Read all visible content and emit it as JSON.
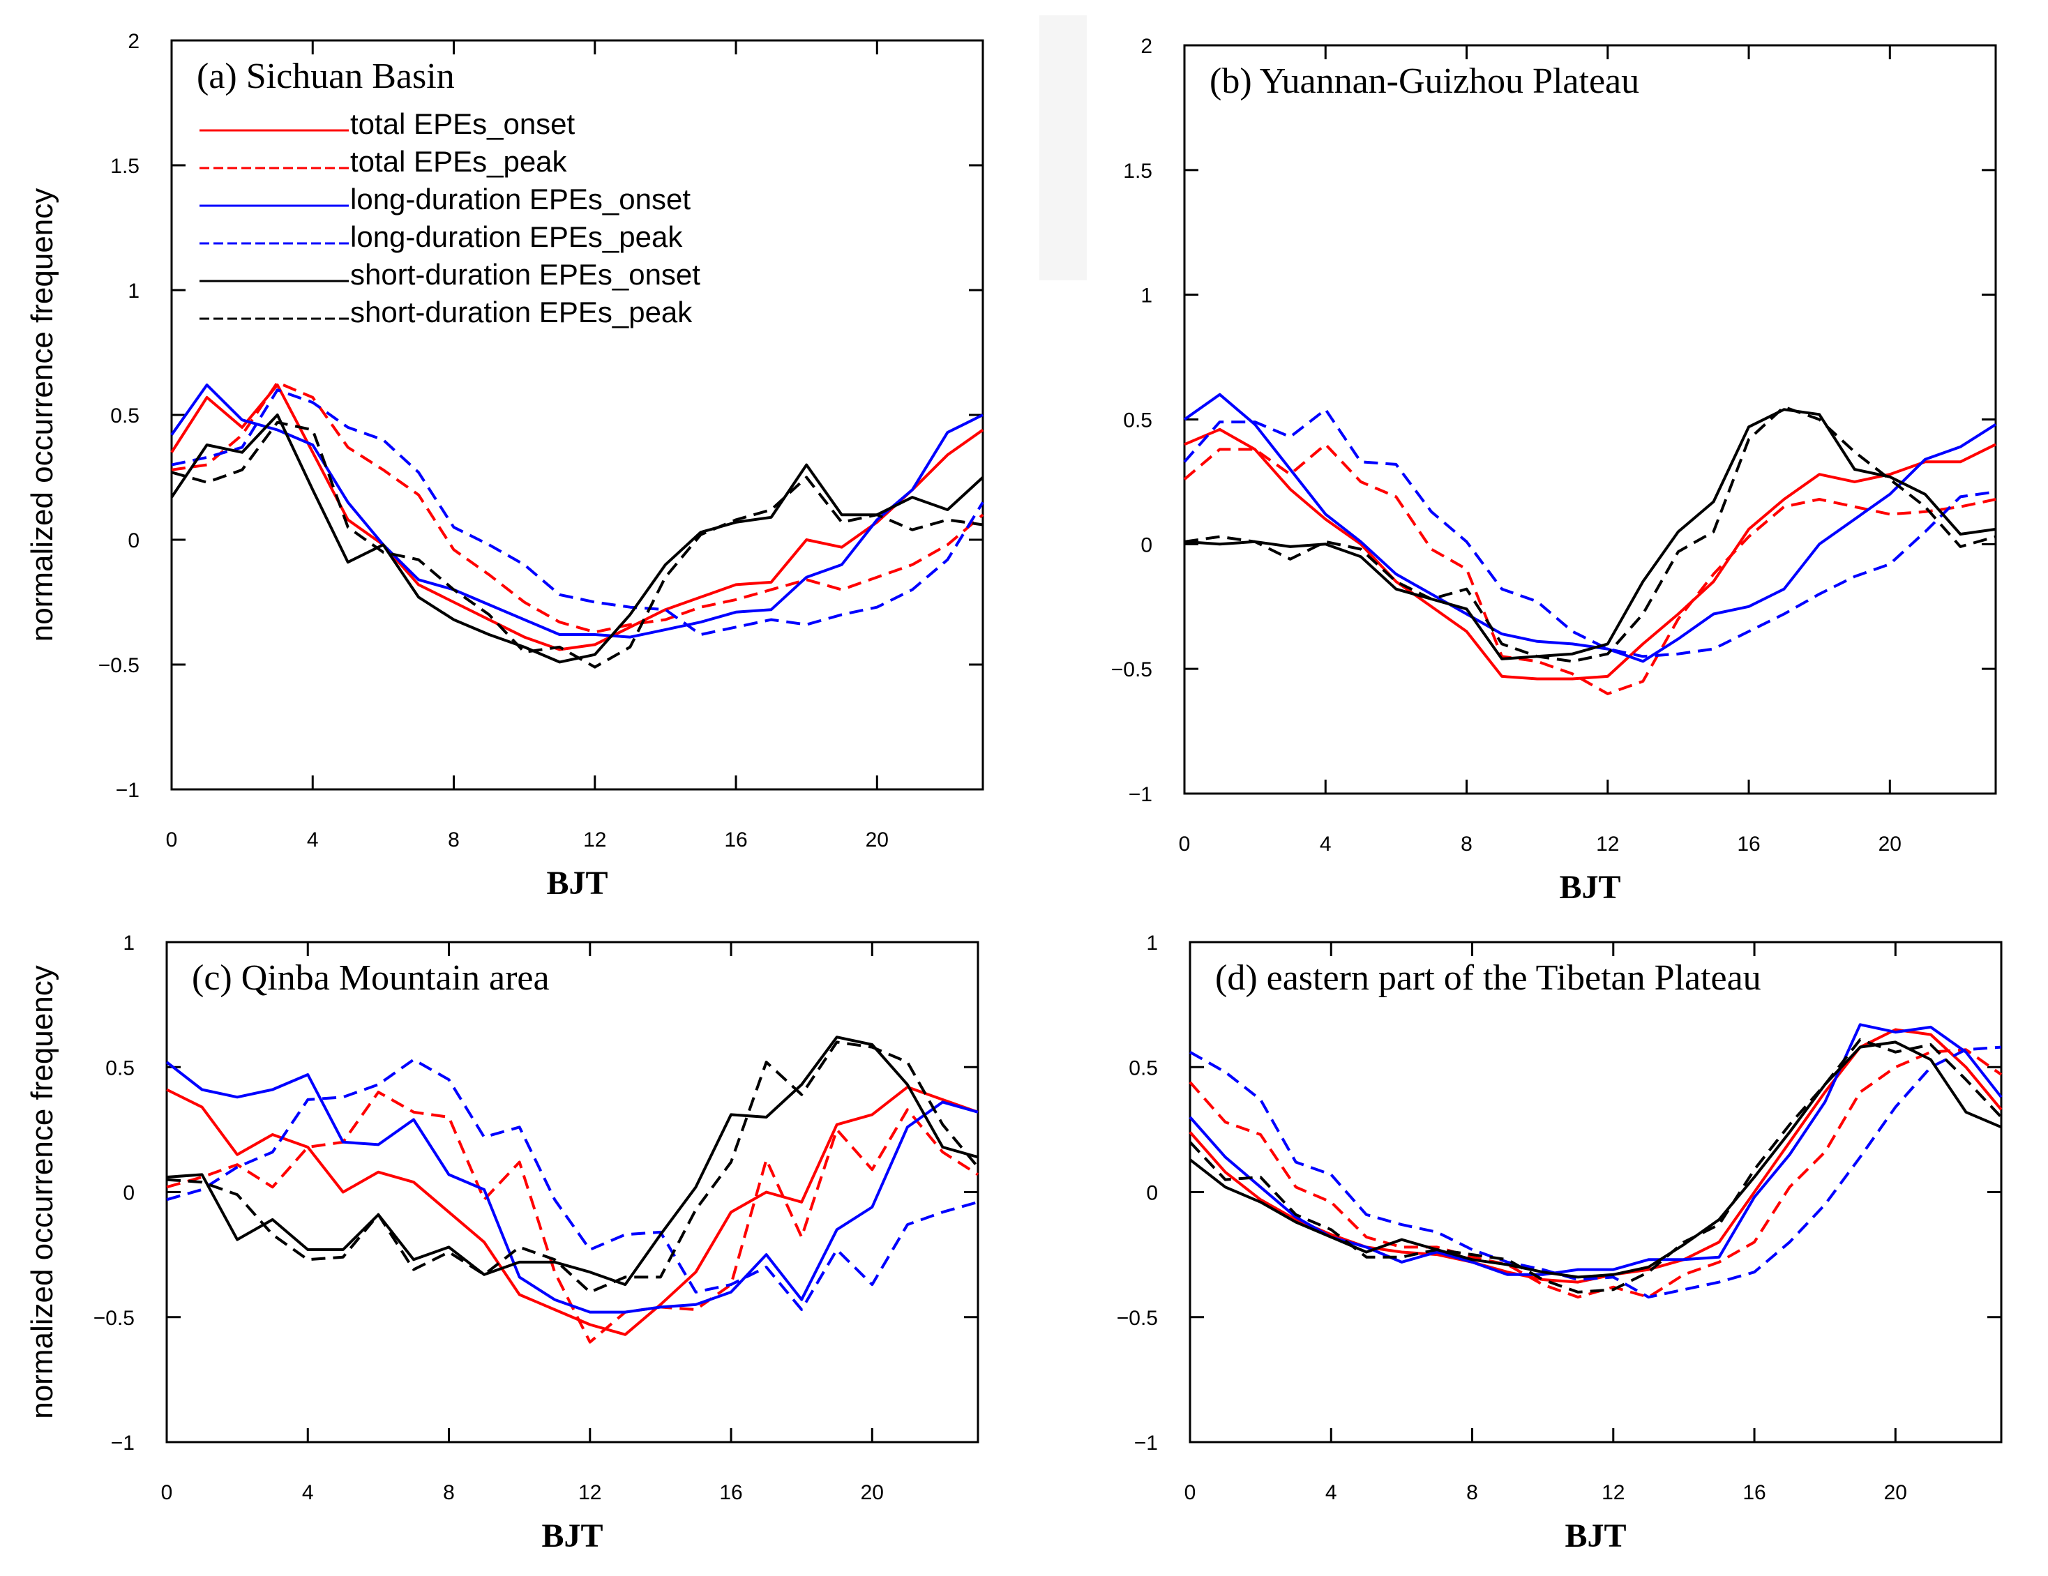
{
  "figure": {
    "y_axis_label": "normalized occurrence frequency",
    "x_axis_label": "BJT",
    "legend": [
      {
        "label": "total EPEs_onset",
        "color": "#ff0000",
        "dashed": false
      },
      {
        "label": "total EPEs_peak",
        "color": "#ff0000",
        "dashed": true
      },
      {
        "label": "long-duration EPEs_onset",
        "color": "#0000ff",
        "dashed": false
      },
      {
        "label": "long-duration EPEs_peak",
        "color": "#0000ff",
        "dashed": true
      },
      {
        "label": "short-duration EPEs_onset",
        "color": "#000000",
        "dashed": false
      },
      {
        "label": "short-duration EPEs_peak",
        "color": "#000000",
        "dashed": true
      }
    ]
  },
  "chart_data": [
    {
      "type": "line",
      "title": "(a) Sichuan Basin",
      "xlabel": "BJT",
      "ylabel": "normalized occurrence frequency",
      "xlim": [
        0,
        23
      ],
      "ylim": [
        -1,
        2
      ],
      "xticks": [
        0,
        4,
        8,
        12,
        16,
        20
      ],
      "yticks": [
        -1,
        -0.5,
        0,
        0.5,
        1,
        1.5,
        2
      ],
      "ytick_labels": [
        "−1",
        "−0.5",
        "0",
        "0.5",
        "1",
        "1.5",
        "2"
      ],
      "x": [
        0,
        1,
        2,
        3,
        4,
        5,
        6,
        7,
        8,
        9,
        10,
        11,
        12,
        13,
        14,
        15,
        16,
        17,
        18,
        19,
        20,
        21,
        22,
        23
      ],
      "series": [
        {
          "name": "total EPEs_onset",
          "color": "#ff0000",
          "dashed": false,
          "values": [
            0.35,
            0.57,
            0.45,
            0.62,
            0.35,
            0.08,
            -0.02,
            -0.18,
            -0.25,
            -0.32,
            -0.39,
            -0.44,
            -0.42,
            -0.35,
            -0.28,
            -0.23,
            -0.18,
            -0.17,
            0.0,
            -0.03,
            0.07,
            0.2,
            0.34,
            0.44
          ]
        },
        {
          "name": "total EPEs_peak",
          "color": "#ff0000",
          "dashed": true,
          "values": [
            0.28,
            0.3,
            0.42,
            0.63,
            0.57,
            0.37,
            0.28,
            0.18,
            -0.04,
            -0.14,
            -0.25,
            -0.33,
            -0.37,
            -0.34,
            -0.32,
            -0.27,
            -0.24,
            -0.2,
            -0.16,
            -0.2,
            -0.15,
            -0.1,
            -0.02,
            0.1
          ]
        },
        {
          "name": "long-duration EPEs_onset",
          "color": "#0000ff",
          "dashed": false,
          "values": [
            0.42,
            0.62,
            0.48,
            0.44,
            0.38,
            0.15,
            -0.02,
            -0.16,
            -0.2,
            -0.26,
            -0.32,
            -0.38,
            -0.38,
            -0.39,
            -0.36,
            -0.33,
            -0.29,
            -0.28,
            -0.15,
            -0.1,
            0.08,
            0.2,
            0.43,
            0.5
          ]
        },
        {
          "name": "long-duration EPEs_peak",
          "color": "#0000ff",
          "dashed": true,
          "values": [
            0.3,
            0.33,
            0.37,
            0.6,
            0.55,
            0.45,
            0.4,
            0.27,
            0.05,
            -0.02,
            -0.1,
            -0.22,
            -0.25,
            -0.27,
            -0.28,
            -0.38,
            -0.35,
            -0.32,
            -0.34,
            -0.3,
            -0.27,
            -0.2,
            -0.08,
            0.15
          ]
        },
        {
          "name": "short-duration EPEs_onset",
          "color": "#000000",
          "dashed": false,
          "values": [
            0.17,
            0.38,
            0.35,
            0.5,
            0.2,
            -0.09,
            -0.02,
            -0.23,
            -0.32,
            -0.38,
            -0.43,
            -0.49,
            -0.46,
            -0.3,
            -0.1,
            0.03,
            0.07,
            0.09,
            0.3,
            0.1,
            0.1,
            0.17,
            0.12,
            0.25
          ]
        },
        {
          "name": "short-duration EPEs_peak",
          "color": "#000000",
          "dashed": true,
          "values": [
            0.27,
            0.23,
            0.28,
            0.47,
            0.44,
            0.05,
            -0.05,
            -0.08,
            -0.2,
            -0.3,
            -0.45,
            -0.43,
            -0.51,
            -0.43,
            -0.15,
            0.02,
            0.08,
            0.12,
            0.25,
            0.07,
            0.1,
            0.04,
            0.08,
            0.06
          ]
        }
      ]
    },
    {
      "type": "line",
      "title": "(b) Yuannan-Guizhou Plateau",
      "xlabel": "BJT",
      "ylabel": "",
      "xlim": [
        0,
        23
      ],
      "ylim": [
        -1,
        2
      ],
      "xticks": [
        0,
        4,
        8,
        12,
        16,
        20
      ],
      "yticks": [
        -1,
        -0.5,
        0,
        0.5,
        1,
        1.5,
        2
      ],
      "ytick_labels": [
        "−1",
        "−0.5",
        "0",
        "0.5",
        "1",
        "1.5",
        "2"
      ],
      "x": [
        0,
        1,
        2,
        3,
        4,
        5,
        6,
        7,
        8,
        9,
        10,
        11,
        12,
        13,
        14,
        15,
        16,
        17,
        18,
        19,
        20,
        21,
        22,
        23
      ],
      "series": [
        {
          "name": "total EPEs_onset",
          "color": "#ff0000",
          "dashed": false,
          "values": [
            0.4,
            0.46,
            0.38,
            0.22,
            0.1,
            0.0,
            -0.15,
            -0.25,
            -0.35,
            -0.53,
            -0.54,
            -0.54,
            -0.53,
            -0.4,
            -0.28,
            -0.15,
            0.06,
            0.18,
            0.28,
            0.25,
            0.28,
            0.33,
            0.33,
            0.4
          ]
        },
        {
          "name": "total EPEs_peak",
          "color": "#ff0000",
          "dashed": true,
          "values": [
            0.26,
            0.38,
            0.38,
            0.28,
            0.4,
            0.25,
            0.19,
            -0.02,
            -0.1,
            -0.45,
            -0.47,
            -0.52,
            -0.6,
            -0.55,
            -0.3,
            -0.12,
            0.03,
            0.15,
            0.18,
            0.15,
            0.12,
            0.13,
            0.15,
            0.18
          ]
        },
        {
          "name": "long-duration EPEs_onset",
          "color": "#0000ff",
          "dashed": false,
          "values": [
            0.5,
            0.6,
            0.48,
            0.3,
            0.12,
            0.01,
            -0.12,
            -0.2,
            -0.28,
            -0.36,
            -0.39,
            -0.4,
            -0.42,
            -0.47,
            -0.38,
            -0.28,
            -0.25,
            -0.18,
            0.0,
            0.1,
            0.2,
            0.34,
            0.39,
            0.48
          ]
        },
        {
          "name": "long-duration EPEs_peak",
          "color": "#0000ff",
          "dashed": true,
          "values": [
            0.33,
            0.49,
            0.49,
            0.43,
            0.54,
            0.33,
            0.32,
            0.13,
            0.01,
            -0.18,
            -0.23,
            -0.35,
            -0.42,
            -0.45,
            -0.44,
            -0.42,
            -0.35,
            -0.28,
            -0.2,
            -0.13,
            -0.08,
            0.05,
            0.19,
            0.21
          ]
        },
        {
          "name": "short-duration EPEs_onset",
          "color": "#000000",
          "dashed": false,
          "values": [
            0.01,
            0.0,
            0.01,
            -0.01,
            0.0,
            -0.05,
            -0.18,
            -0.22,
            -0.26,
            -0.46,
            -0.45,
            -0.44,
            -0.4,
            -0.15,
            0.05,
            0.17,
            0.47,
            0.54,
            0.52,
            0.3,
            0.27,
            0.2,
            0.04,
            0.06
          ]
        },
        {
          "name": "short-duration EPEs_peak",
          "color": "#000000",
          "dashed": true,
          "values": [
            0.01,
            0.03,
            0.01,
            -0.06,
            0.01,
            -0.02,
            -0.15,
            -0.22,
            -0.18,
            -0.4,
            -0.45,
            -0.47,
            -0.44,
            -0.28,
            -0.03,
            0.05,
            0.42,
            0.55,
            0.5,
            0.37,
            0.26,
            0.15,
            -0.01,
            0.03
          ]
        }
      ]
    },
    {
      "type": "line",
      "title": "(c) Qinba Mountain area",
      "xlabel": "BJT",
      "ylabel": "normalized occurrence frequency",
      "xlim": [
        0,
        23
      ],
      "ylim": [
        -1,
        1
      ],
      "xticks": [
        0,
        4,
        8,
        12,
        16,
        20
      ],
      "yticks": [
        -1,
        -0.5,
        0,
        0.5,
        1
      ],
      "ytick_labels": [
        "−1",
        "−0.5",
        "0",
        "0.5",
        "1"
      ],
      "x": [
        0,
        1,
        2,
        3,
        4,
        5,
        6,
        7,
        8,
        9,
        10,
        11,
        12,
        13,
        14,
        15,
        16,
        17,
        18,
        19,
        20,
        21,
        22,
        23
      ],
      "series": [
        {
          "name": "total EPEs_onset",
          "color": "#ff0000",
          "dashed": false,
          "values": [
            0.41,
            0.34,
            0.15,
            0.23,
            0.18,
            0.0,
            0.08,
            0.04,
            -0.08,
            -0.2,
            -0.41,
            -0.47,
            -0.53,
            -0.57,
            -0.45,
            -0.32,
            -0.08,
            0.0,
            -0.04,
            0.27,
            0.31,
            0.42,
            0.37,
            0.32
          ]
        },
        {
          "name": "total EPEs_peak",
          "color": "#ff0000",
          "dashed": true,
          "values": [
            0.02,
            0.06,
            0.11,
            0.02,
            0.18,
            0.2,
            0.4,
            0.32,
            0.3,
            -0.03,
            0.12,
            -0.32,
            -0.6,
            -0.48,
            -0.46,
            -0.47,
            -0.37,
            0.13,
            -0.18,
            0.25,
            0.09,
            0.33,
            0.16,
            0.07
          ]
        },
        {
          "name": "long-duration EPEs_onset",
          "color": "#0000ff",
          "dashed": false,
          "values": [
            0.52,
            0.41,
            0.38,
            0.41,
            0.47,
            0.2,
            0.19,
            0.29,
            0.07,
            0.01,
            -0.34,
            -0.43,
            -0.48,
            -0.48,
            -0.46,
            -0.45,
            -0.4,
            -0.25,
            -0.43,
            -0.15,
            -0.06,
            0.26,
            0.36,
            0.32
          ]
        },
        {
          "name": "long-duration EPEs_peak",
          "color": "#0000ff",
          "dashed": true,
          "values": [
            -0.03,
            0.01,
            0.1,
            0.16,
            0.37,
            0.38,
            0.43,
            0.53,
            0.45,
            0.22,
            0.26,
            -0.03,
            -0.23,
            -0.17,
            -0.16,
            -0.4,
            -0.37,
            -0.3,
            -0.47,
            -0.23,
            -0.37,
            -0.13,
            -0.08,
            -0.04
          ]
        },
        {
          "name": "short-duration EPEs_onset",
          "color": "#000000",
          "dashed": false,
          "values": [
            0.06,
            0.07,
            -0.19,
            -0.11,
            -0.23,
            -0.23,
            -0.09,
            -0.27,
            -0.22,
            -0.33,
            -0.28,
            -0.28,
            -0.32,
            -0.37,
            -0.17,
            0.02,
            0.31,
            0.3,
            0.43,
            0.62,
            0.59,
            0.43,
            0.18,
            0.14
          ]
        },
        {
          "name": "short-duration EPEs_peak",
          "color": "#000000",
          "dashed": true,
          "values": [
            0.05,
            0.04,
            -0.01,
            -0.17,
            -0.27,
            -0.26,
            -0.09,
            -0.31,
            -0.24,
            -0.33,
            -0.22,
            -0.27,
            -0.4,
            -0.34,
            -0.34,
            -0.07,
            0.12,
            0.52,
            0.39,
            0.6,
            0.58,
            0.52,
            0.27,
            0.1
          ]
        }
      ]
    },
    {
      "type": "line",
      "title": "(d) eastern part of the Tibetan Plateau",
      "xlabel": "BJT",
      "ylabel": "",
      "xlim": [
        0,
        23
      ],
      "ylim": [
        -1,
        1
      ],
      "xticks": [
        0,
        4,
        8,
        12,
        16,
        20
      ],
      "yticks": [
        -1,
        -0.5,
        0,
        0.5,
        1
      ],
      "ytick_labels": [
        "−1",
        "−0.5",
        "0",
        "0.5",
        "1"
      ],
      "x": [
        0,
        1,
        2,
        3,
        4,
        5,
        6,
        7,
        8,
        9,
        10,
        11,
        12,
        13,
        14,
        15,
        16,
        17,
        18,
        19,
        20,
        21,
        22,
        23
      ],
      "series": [
        {
          "name": "total EPEs_onset",
          "color": "#ff0000",
          "dashed": false,
          "values": [
            0.24,
            0.08,
            -0.03,
            -0.11,
            -0.17,
            -0.22,
            -0.24,
            -0.25,
            -0.28,
            -0.32,
            -0.35,
            -0.36,
            -0.33,
            -0.31,
            -0.27,
            -0.2,
            0.0,
            0.2,
            0.4,
            0.58,
            0.65,
            0.63,
            0.5,
            0.33
          ]
        },
        {
          "name": "total EPEs_peak",
          "color": "#ff0000",
          "dashed": true,
          "values": [
            0.44,
            0.28,
            0.23,
            0.02,
            -0.04,
            -0.18,
            -0.22,
            -0.22,
            -0.26,
            -0.29,
            -0.37,
            -0.42,
            -0.38,
            -0.42,
            -0.33,
            -0.28,
            -0.2,
            0.02,
            0.16,
            0.4,
            0.5,
            0.56,
            0.57,
            0.47
          ]
        },
        {
          "name": "long-duration EPEs_onset",
          "color": "#0000ff",
          "dashed": false,
          "values": [
            0.3,
            0.14,
            0.02,
            -0.1,
            -0.18,
            -0.22,
            -0.28,
            -0.24,
            -0.28,
            -0.33,
            -0.33,
            -0.31,
            -0.31,
            -0.27,
            -0.27,
            -0.26,
            -0.02,
            0.15,
            0.36,
            0.67,
            0.64,
            0.66,
            0.56,
            0.38
          ]
        },
        {
          "name": "long-duration EPEs_peak",
          "color": "#0000ff",
          "dashed": true,
          "values": [
            0.56,
            0.48,
            0.37,
            0.12,
            0.07,
            -0.09,
            -0.13,
            -0.16,
            -0.23,
            -0.28,
            -0.31,
            -0.35,
            -0.34,
            -0.42,
            -0.39,
            -0.36,
            -0.32,
            -0.2,
            -0.05,
            0.14,
            0.34,
            0.5,
            0.57,
            0.58
          ]
        },
        {
          "name": "short-duration EPEs_onset",
          "color": "#000000",
          "dashed": false,
          "values": [
            0.13,
            0.02,
            -0.04,
            -0.12,
            -0.18,
            -0.24,
            -0.19,
            -0.23,
            -0.27,
            -0.29,
            -0.32,
            -0.34,
            -0.33,
            -0.3,
            -0.21,
            -0.11,
            0.06,
            0.24,
            0.43,
            0.58,
            0.6,
            0.53,
            0.32,
            0.26
          ]
        },
        {
          "name": "short-duration EPEs_peak",
          "color": "#000000",
          "dashed": true,
          "values": [
            0.2,
            0.05,
            0.06,
            -0.09,
            -0.15,
            -0.26,
            -0.26,
            -0.23,
            -0.25,
            -0.27,
            -0.35,
            -0.4,
            -0.39,
            -0.32,
            -0.2,
            -0.13,
            0.09,
            0.27,
            0.43,
            0.61,
            0.56,
            0.59,
            0.45,
            0.3
          ]
        }
      ]
    }
  ]
}
